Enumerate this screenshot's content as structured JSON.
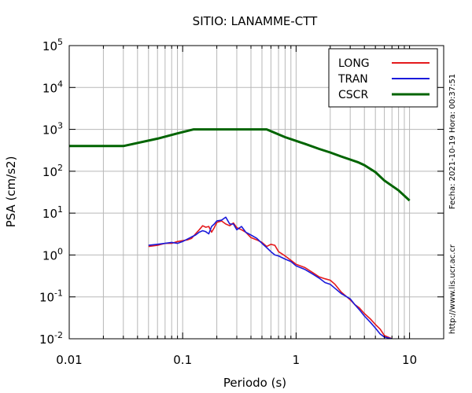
{
  "chart_data": {
    "type": "line",
    "title": "SITIO: LANAMME-CTT",
    "xlabel": "Periodo (s)",
    "ylabel": "PSA (cm/s2)",
    "xscale": "log",
    "yscale": "log",
    "xlim": [
      0.01,
      20
    ],
    "ylim": [
      0.01,
      100000
    ],
    "x_ticks": [
      {
        "value": 0.01,
        "label": "0.01"
      },
      {
        "value": 0.1,
        "label": "0.1"
      },
      {
        "value": 1,
        "label": "1"
      },
      {
        "value": 10,
        "label": "10"
      }
    ],
    "y_ticks": [
      {
        "value": 0.01,
        "base": "10",
        "exp": "-2"
      },
      {
        "value": 0.1,
        "base": "10",
        "exp": "-1"
      },
      {
        "value": 1,
        "base": "10",
        "exp": "0"
      },
      {
        "value": 10,
        "base": "10",
        "exp": "1"
      },
      {
        "value": 100,
        "base": "10",
        "exp": "2"
      },
      {
        "value": 1000,
        "base": "10",
        "exp": "3"
      },
      {
        "value": 10000,
        "base": "10",
        "exp": "4"
      },
      {
        "value": 100000,
        "base": "10",
        "exp": "5"
      }
    ],
    "grid": true,
    "legend_position": "top-right",
    "side_note_date": "Fecha: 2021-10-19  Hora: 00:37:51",
    "side_note_url": "http://www.lis.ucr.ac.cr",
    "series": [
      {
        "name": "LONG",
        "color": "#e41a1c",
        "x": [
          0.05,
          0.06,
          0.07,
          0.08,
          0.09,
          0.1,
          0.11,
          0.12,
          0.13,
          0.14,
          0.15,
          0.16,
          0.17,
          0.18,
          0.19,
          0.2,
          0.22,
          0.24,
          0.26,
          0.28,
          0.3,
          0.33,
          0.36,
          0.4,
          0.45,
          0.5,
          0.55,
          0.6,
          0.65,
          0.7,
          0.8,
          0.9,
          1.0,
          1.2,
          1.4,
          1.6,
          1.8,
          2.0,
          2.2,
          2.5,
          2.8,
          3.0,
          3.3,
          3.6,
          4.0,
          4.5,
          5.0,
          5.5,
          6.0,
          7.0
        ],
        "y": [
          1.6,
          1.7,
          1.9,
          1.9,
          2.1,
          2.2,
          2.3,
          2.5,
          3.2,
          4.0,
          5.0,
          4.6,
          4.8,
          3.5,
          4.5,
          6.0,
          6.5,
          5.5,
          5.0,
          5.8,
          4.5,
          4.0,
          3.5,
          2.6,
          2.3,
          2.0,
          1.6,
          1.8,
          1.7,
          1.2,
          0.95,
          0.75,
          0.6,
          0.5,
          0.38,
          0.3,
          0.27,
          0.25,
          0.2,
          0.13,
          0.1,
          0.085,
          0.065,
          0.055,
          0.04,
          0.03,
          0.022,
          0.017,
          0.012,
          0.01
        ]
      },
      {
        "name": "TRAN",
        "color": "#1a1adb",
        "x": [
          0.05,
          0.06,
          0.07,
          0.08,
          0.09,
          0.1,
          0.11,
          0.12,
          0.13,
          0.14,
          0.15,
          0.16,
          0.17,
          0.18,
          0.19,
          0.2,
          0.22,
          0.24,
          0.26,
          0.28,
          0.3,
          0.33,
          0.36,
          0.4,
          0.45,
          0.5,
          0.55,
          0.6,
          0.65,
          0.7,
          0.8,
          0.9,
          1.0,
          1.2,
          1.4,
          1.6,
          1.8,
          2.0,
          2.2,
          2.5,
          2.8,
          3.0,
          3.3,
          3.6,
          4.0,
          4.5,
          5.0,
          5.5,
          6.0,
          7.0
        ],
        "y": [
          1.7,
          1.8,
          1.9,
          2.0,
          1.9,
          2.1,
          2.4,
          2.7,
          3.0,
          3.5,
          3.8,
          3.6,
          3.2,
          4.8,
          5.5,
          6.5,
          6.8,
          8.0,
          5.5,
          5.5,
          4.0,
          4.8,
          3.5,
          3.0,
          2.5,
          1.9,
          1.5,
          1.2,
          1.0,
          0.95,
          0.8,
          0.7,
          0.55,
          0.45,
          0.35,
          0.28,
          0.22,
          0.2,
          0.16,
          0.12,
          0.1,
          0.09,
          0.065,
          0.05,
          0.035,
          0.025,
          0.018,
          0.013,
          0.011,
          0.01
        ]
      },
      {
        "name": "CSCR",
        "color": "#006400",
        "x": [
          0.01,
          0.03,
          0.06,
          0.09,
          0.125,
          0.55,
          0.8,
          1.2,
          1.6,
          2.0,
          2.5,
          3.0,
          3.5,
          4.0,
          5.0,
          6.0,
          8.0,
          10.0
        ],
        "y": [
          400,
          400,
          600,
          800,
          1000,
          1000,
          650,
          450,
          340,
          280,
          225,
          190,
          165,
          140,
          95,
          60,
          35,
          20
        ]
      }
    ]
  }
}
